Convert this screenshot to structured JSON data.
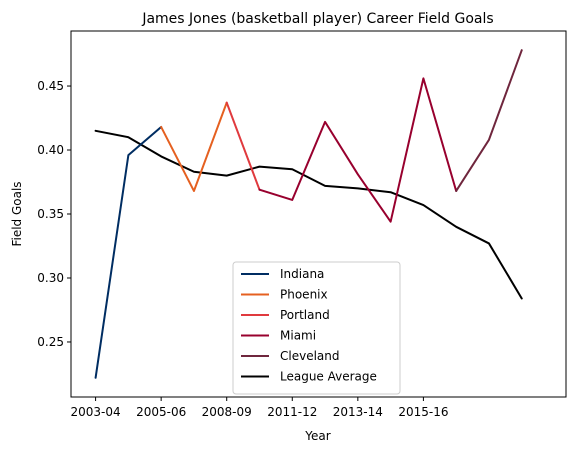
{
  "chart_data": {
    "type": "line",
    "title": "James Jones (basketball player) Career Field Goals",
    "xlabel": "Year",
    "ylabel": "Field Goals",
    "x_tick_labels": [
      "2003-04",
      "2005-06",
      "2008-09",
      "2011-12",
      "2013-14",
      "2015-16"
    ],
    "ylim": [
      0.207,
      0.493
    ],
    "y_ticks": [
      0.25,
      0.3,
      0.35,
      0.4,
      0.45
    ],
    "y_tick_labels": [
      "0.25",
      "0.30",
      "0.35",
      "0.40",
      "0.45"
    ],
    "grid": false,
    "legend_position": "lower center",
    "series": [
      {
        "name": "Indiana",
        "color": "#002d62",
        "x": [
          0,
          1,
          2
        ],
        "values": [
          0.222,
          0.396,
          0.418
        ]
      },
      {
        "name": "Phoenix",
        "color": "#e56020",
        "x": [
          2,
          3,
          4
        ],
        "values": [
          0.418,
          0.368,
          0.437
        ]
      },
      {
        "name": "Portland",
        "color": "#e03a3e",
        "x": [
          4,
          5
        ],
        "values": [
          0.437,
          0.369
        ]
      },
      {
        "name": "Miami",
        "color": "#98002e",
        "x": [
          5,
          6,
          7,
          8,
          9,
          10,
          11
        ],
        "values": [
          0.369,
          0.361,
          0.422,
          0.381,
          0.344,
          0.456,
          0.368
        ]
      },
      {
        "name": "Cleveland",
        "color": "#6f263d",
        "x": [
          11,
          12,
          13
        ],
        "values": [
          0.368,
          0.408,
          0.478
        ]
      },
      {
        "name": "League Average",
        "color": "#000000",
        "x": [
          0,
          1,
          2,
          3,
          4,
          5,
          6,
          7,
          8,
          9,
          10,
          11,
          12,
          13
        ],
        "values": [
          0.415,
          0.41,
          0.395,
          0.383,
          0.38,
          0.387,
          0.385,
          0.372,
          0.37,
          0.367,
          0.357,
          0.34,
          0.327,
          0.284
        ]
      }
    ]
  }
}
